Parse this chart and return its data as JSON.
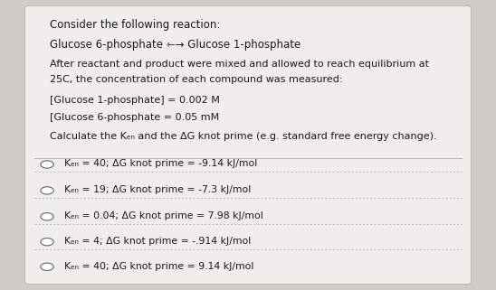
{
  "background_color": "#d0cdc8",
  "card_color": "#f0eeea",
  "title_line": "Consider the following reaction:",
  "reaction_line": "Glucose 6-phosphate ⇽→ Glucose 1-phosphate",
  "description_line1": "After reactant and product were mixed and allowed to reach equilibrium at",
  "description_line2": "25C, the concentration of each compound was measured:",
  "conc_line1": "[Glucose 1-phosphate] = 0.002 M",
  "conc_line2": "[Glucose 6-phosphate = 0.05 mM",
  "question_line": "Calculate the Kₑₙ and the ΔG knot prime (e.g. standard free energy change).",
  "options": [
    "Kₑₙ = 40; ΔG knot prime = -9.14 kJ/mol",
    "Kₑₙ = 19; ΔG knot prime = -7.3 kJ/mol",
    "Kₑₙ = 0.04; ΔG knot prime = 7.98 kJ/mol",
    "Kₑₙ = 4; ΔG knot prime = -.914 kJ/mol",
    "Kₑₙ = 40; ΔG knot prime = 9.14 kJ/mol"
  ],
  "font_size_title": 8.5,
  "font_size_body": 8.0,
  "font_size_options": 7.8,
  "text_color": "#1a1a1a"
}
